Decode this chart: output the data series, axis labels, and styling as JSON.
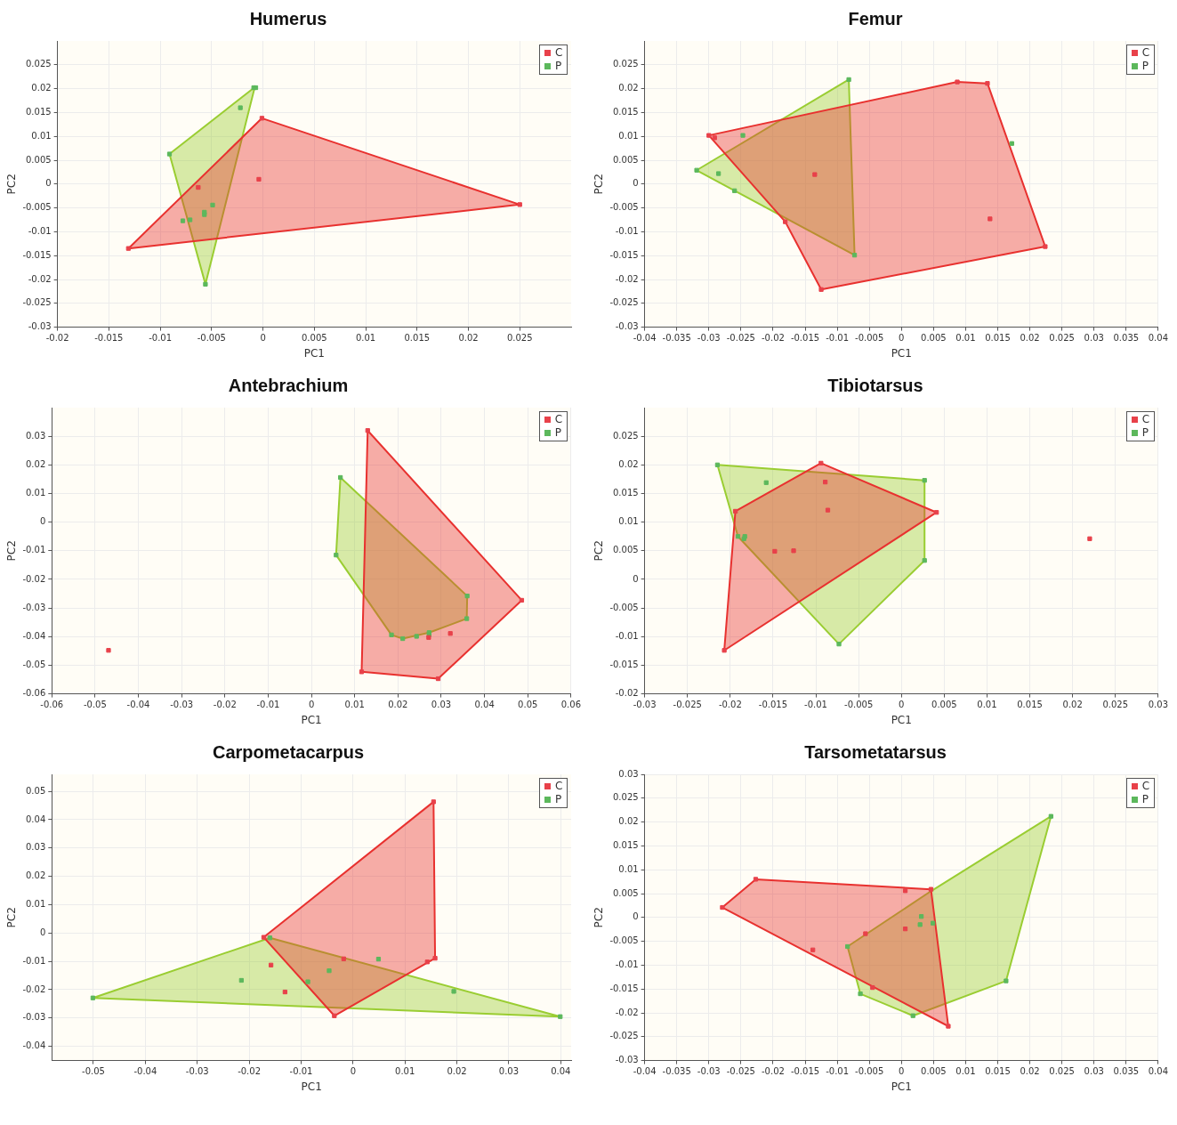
{
  "chart_data": [
    {
      "type": "scatter",
      "title": "Humerus",
      "xlabel": "PC1",
      "ylabel": "PC2",
      "xlim": [
        -0.02,
        0.03
      ],
      "ylim": [
        -0.03,
        0.03
      ],
      "xticks": [
        -0.02,
        -0.015,
        -0.01,
        -0.005,
        0,
        0.005,
        0.01,
        0.015,
        0.02,
        0.025
      ],
      "yticks": [
        -0.03,
        -0.025,
        -0.02,
        -0.015,
        -0.01,
        -0.005,
        0,
        0.005,
        0.01,
        0.015,
        0.02,
        0.025
      ],
      "grid": true,
      "legend": "top right",
      "marker": "square",
      "series": [
        {
          "type": "area",
          "marker": "none",
          "color": "#e8312f",
          "x": [
            -0.0131,
            -0.0001,
            0.025,
            -0.0131
          ],
          "values": [
            -0.0135,
            0.0138,
            -0.0043,
            -0.0135
          ]
        },
        {
          "type": "area",
          "marker": "none",
          "color": "#9acd32",
          "x": [
            -0.0008,
            -0.0091,
            -0.0056,
            -0.0008
          ],
          "values": [
            0.0203,
            0.0063,
            -0.021,
            0.0203
          ]
        },
        {
          "name": "C",
          "color": "#e8414a",
          "x": [
            -0.0131,
            -0.0001,
            0.025,
            -0.0063,
            -0.0004
          ],
          "values": [
            -0.0135,
            0.0138,
            -0.0043,
            -0.0007,
            0.001
          ]
        },
        {
          "name": "P",
          "color": "#5cb85c",
          "x": [
            -0.0009,
            -0.0007,
            -0.0022,
            -0.0091,
            -0.0056,
            -0.0078,
            -0.0071,
            -0.0057,
            -0.0057,
            -0.0049
          ],
          "values": [
            0.0202,
            0.0202,
            0.016,
            0.0063,
            -0.021,
            -0.0077,
            -0.0075,
            -0.0064,
            -0.0059,
            -0.0044
          ]
        }
      ]
    },
    {
      "type": "scatter",
      "title": "Femur",
      "xlabel": "PC1",
      "ylabel": "PC2",
      "xlim": [
        -0.04,
        0.04
      ],
      "ylim": [
        -0.03,
        0.03
      ],
      "xticks": [
        -0.04,
        -0.035,
        -0.03,
        -0.025,
        -0.02,
        -0.015,
        -0.01,
        -0.005,
        0,
        0.005,
        0.01,
        0.015,
        0.02,
        0.025,
        0.03,
        0.035,
        0.04
      ],
      "yticks": [
        -0.03,
        -0.025,
        -0.02,
        -0.015,
        -0.01,
        -0.005,
        0,
        0.005,
        0.01,
        0.015,
        0.02,
        0.025
      ],
      "grid": true,
      "legend": "top right",
      "marker": "square",
      "series": [
        {
          "type": "area",
          "marker": "none",
          "color": "#e8312f",
          "x": [
            -0.03,
            0.0087,
            0.0134,
            0.0224,
            -0.0125,
            -0.0181,
            -0.03
          ],
          "values": [
            0.0102,
            0.0214,
            0.0211,
            -0.0131,
            -0.0221,
            -0.0079,
            0.0102
          ]
        },
        {
          "type": "area",
          "marker": "none",
          "color": "#9acd32",
          "x": [
            -0.0082,
            -0.0073,
            -0.0319,
            -0.0082
          ],
          "values": [
            0.0219,
            -0.0149,
            0.0029,
            0.0219
          ]
        },
        {
          "name": "C",
          "color": "#e8414a",
          "x": [
            -0.03,
            -0.0291,
            0.0087,
            0.0134,
            0.0224,
            -0.0125,
            -0.0181,
            -0.0135,
            0.0138
          ],
          "values": [
            0.0102,
            0.0097,
            0.0214,
            0.0211,
            -0.0131,
            -0.0221,
            -0.0079,
            0.002,
            -0.0073
          ]
        },
        {
          "name": "P",
          "color": "#5cb85c",
          "x": [
            -0.0082,
            -0.0319,
            -0.0073,
            -0.0247,
            -0.0285,
            -0.026,
            0.0172
          ],
          "values": [
            0.0219,
            0.0029,
            -0.0149,
            0.0102,
            0.0022,
            -0.0014,
            0.0085
          ]
        }
      ]
    },
    {
      "type": "scatter",
      "title": "Antebrachium",
      "xlabel": "PC1",
      "ylabel": "PC2",
      "xlim": [
        -0.06,
        0.06
      ],
      "ylim": [
        -0.06,
        0.04
      ],
      "xticks": [
        -0.06,
        -0.05,
        -0.04,
        -0.03,
        -0.02,
        -0.01,
        0,
        0.01,
        0.02,
        0.03,
        0.04,
        0.05,
        0.06
      ],
      "yticks": [
        -0.06,
        -0.05,
        -0.04,
        -0.03,
        -0.02,
        -0.01,
        0,
        0.01,
        0.02,
        0.03
      ],
      "grid": true,
      "legend": "top right",
      "marker": "square",
      "series": [
        {
          "type": "area",
          "marker": "none",
          "color": "#e8312f",
          "x": [
            0.013,
            0.0486,
            0.0293,
            0.0116,
            0.013
          ],
          "values": [
            0.032,
            -0.0273,
            -0.0547,
            -0.0523,
            0.032
          ]
        },
        {
          "type": "area",
          "marker": "none",
          "color": "#9acd32",
          "x": [
            0.0067,
            0.036,
            0.0359,
            0.0272,
            0.0211,
            0.0185,
            0.0057,
            0.0067
          ],
          "values": [
            0.0156,
            -0.0258,
            -0.0337,
            -0.0386,
            -0.0407,
            -0.0394,
            -0.0115,
            0.0156
          ]
        },
        {
          "name": "C",
          "color": "#e8414a",
          "x": [
            -0.0469,
            0.013,
            0.0486,
            0.0293,
            0.0116,
            0.0321,
            0.0271
          ],
          "values": [
            -0.0448,
            0.032,
            -0.0273,
            -0.0547,
            -0.0523,
            -0.0389,
            -0.0403
          ]
        },
        {
          "name": "P",
          "color": "#5cb85c",
          "x": [
            0.0067,
            0.0057,
            0.036,
            0.0359,
            0.0185,
            0.0211,
            0.0243,
            0.0272,
            0.0272
          ],
          "values": [
            0.0156,
            -0.0115,
            -0.0258,
            -0.0337,
            -0.0394,
            -0.0407,
            -0.0399,
            -0.0386,
            -0.0394
          ]
        }
      ]
    },
    {
      "type": "scatter",
      "title": "Tibiotarsus",
      "xlabel": "PC1",
      "ylabel": "PC2",
      "xlim": [
        -0.03,
        0.03
      ],
      "ylim": [
        -0.02,
        0.03
      ],
      "xticks": [
        -0.03,
        -0.025,
        -0.02,
        -0.015,
        -0.01,
        -0.005,
        0,
        0.005,
        0.01,
        0.015,
        0.02,
        0.025,
        0.03
      ],
      "yticks": [
        -0.02,
        -0.015,
        -0.01,
        -0.005,
        0,
        0.005,
        0.01,
        0.015,
        0.02,
        0.025
      ],
      "grid": true,
      "legend": "top right",
      "marker": "square",
      "series": [
        {
          "type": "area",
          "marker": "none",
          "color": "#e8312f",
          "x": [
            -0.0194,
            -0.0094,
            0.0041,
            -0.0207,
            -0.0194
          ],
          "values": [
            0.0119,
            0.0203,
            0.0117,
            -0.0124,
            0.0119
          ]
        },
        {
          "type": "area",
          "marker": "none",
          "color": "#9acd32",
          "x": [
            -0.0215,
            0.0027,
            0.0027,
            -0.0073,
            -0.0191,
            -0.0215
          ],
          "values": [
            0.02,
            0.0173,
            0.0033,
            -0.0113,
            0.0075,
            0.02
          ]
        },
        {
          "name": "C",
          "color": "#e8414a",
          "x": [
            -0.0194,
            -0.0094,
            0.0041,
            -0.0207,
            -0.0089,
            -0.0086,
            -0.0148,
            -0.0126,
            0.022
          ],
          "values": [
            0.0119,
            0.0203,
            0.0117,
            -0.0124,
            0.017,
            0.0121,
            0.0049,
            0.005,
            0.0071
          ]
        },
        {
          "name": "P",
          "color": "#5cb85c",
          "x": [
            -0.0215,
            0.0027,
            0.0027,
            -0.0073,
            -0.0191,
            -0.0184,
            -0.0183,
            -0.0158
          ],
          "values": [
            0.02,
            0.0173,
            0.0033,
            -0.0113,
            0.0075,
            0.0071,
            0.0075,
            0.0169
          ]
        }
      ]
    },
    {
      "type": "scatter",
      "title": "Carpometacarpus",
      "xlabel": "PC1",
      "ylabel": "PC2",
      "xlim": [
        -0.058,
        0.042
      ],
      "ylim": [
        -0.045,
        0.056
      ],
      "xticks": [
        -0.05,
        -0.04,
        -0.03,
        -0.02,
        -0.01,
        0,
        0.01,
        0.02,
        0.03,
        0.04
      ],
      "yticks": [
        -0.04,
        -0.03,
        -0.02,
        -0.01,
        0,
        0.01,
        0.02,
        0.03,
        0.04,
        0.05
      ],
      "grid": true,
      "legend": "top right",
      "marker": "square",
      "series": [
        {
          "type": "area",
          "marker": "none",
          "color": "#e8312f",
          "x": [
            -0.0172,
            0.0155,
            0.0158,
            -0.0036,
            -0.0172
          ],
          "values": [
            -0.0015,
            0.0463,
            -0.0089,
            -0.0292,
            -0.0015
          ]
        },
        {
          "type": "area",
          "marker": "none",
          "color": "#9acd32",
          "x": [
            -0.016,
            0.0399,
            -0.0501,
            -0.016
          ],
          "values": [
            -0.0017,
            -0.0295,
            -0.0229,
            -0.0017
          ]
        },
        {
          "name": "C",
          "color": "#e8414a",
          "x": [
            -0.0172,
            0.0155,
            0.0158,
            -0.0036,
            -0.0158,
            -0.0131,
            -0.0018,
            0.0143
          ],
          "values": [
            -0.0015,
            0.0463,
            -0.0089,
            -0.0292,
            -0.0113,
            -0.0208,
            -0.0091,
            -0.0102
          ]
        },
        {
          "name": "P",
          "color": "#5cb85c",
          "x": [
            -0.0501,
            0.0399,
            -0.016,
            0.0049,
            -0.0215,
            -0.0087,
            -0.0046,
            0.0194
          ],
          "values": [
            -0.0229,
            -0.0295,
            -0.0017,
            -0.0092,
            -0.0167,
            -0.0172,
            -0.0133,
            -0.0206
          ]
        }
      ]
    },
    {
      "type": "scatter",
      "title": "Tarsometatarsus",
      "xlabel": "PC1",
      "ylabel": "PC2",
      "xlim": [
        -0.04,
        0.04
      ],
      "ylim": [
        -0.03,
        0.03
      ],
      "xticks": [
        -0.04,
        -0.035,
        -0.03,
        -0.025,
        -0.02,
        -0.015,
        -0.01,
        -0.005,
        0,
        0.005,
        0.01,
        0.015,
        0.02,
        0.025,
        0.03,
        0.035,
        0.04
      ],
      "yticks": [
        -0.03,
        -0.025,
        -0.02,
        -0.015,
        -0.01,
        -0.005,
        0,
        0.005,
        0.01,
        0.015,
        0.02,
        0.025,
        0.03
      ],
      "grid": true,
      "legend": "top right",
      "marker": "square",
      "series": [
        {
          "type": "area",
          "marker": "none",
          "color": "#e8312f",
          "x": [
            -0.0279,
            -0.0227,
            0.0046,
            0.0073,
            -0.0279
          ],
          "values": [
            0.0021,
            0.008,
            0.0059,
            -0.0228,
            0.0021
          ]
        },
        {
          "type": "area",
          "marker": "none",
          "color": "#9acd32",
          "x": [
            -0.0084,
            0.0047,
            0.0233,
            0.0163,
            0.0018,
            -0.0064,
            -0.0084
          ],
          "values": [
            -0.0061,
            0.0056,
            0.0212,
            -0.0133,
            -0.0206,
            -0.016,
            -0.0061
          ]
        },
        {
          "name": "C",
          "color": "#e8414a",
          "x": [
            -0.0279,
            -0.0227,
            0.0046,
            0.0073,
            -0.0138,
            -0.0056,
            0.0006,
            0.0006,
            -0.0045
          ],
          "values": [
            0.0021,
            0.008,
            0.0059,
            -0.0228,
            -0.0068,
            -0.0034,
            0.0056,
            -0.0024,
            -0.0147
          ]
        },
        {
          "name": "P",
          "color": "#5cb85c",
          "x": [
            -0.0084,
            0.0233,
            0.0163,
            0.0018,
            -0.0064,
            0.0031,
            0.0029,
            0.0049
          ],
          "values": [
            -0.0061,
            0.0212,
            -0.0133,
            -0.0206,
            -0.016,
            0.0002,
            -0.0015,
            -0.0012
          ]
        }
      ]
    }
  ]
}
